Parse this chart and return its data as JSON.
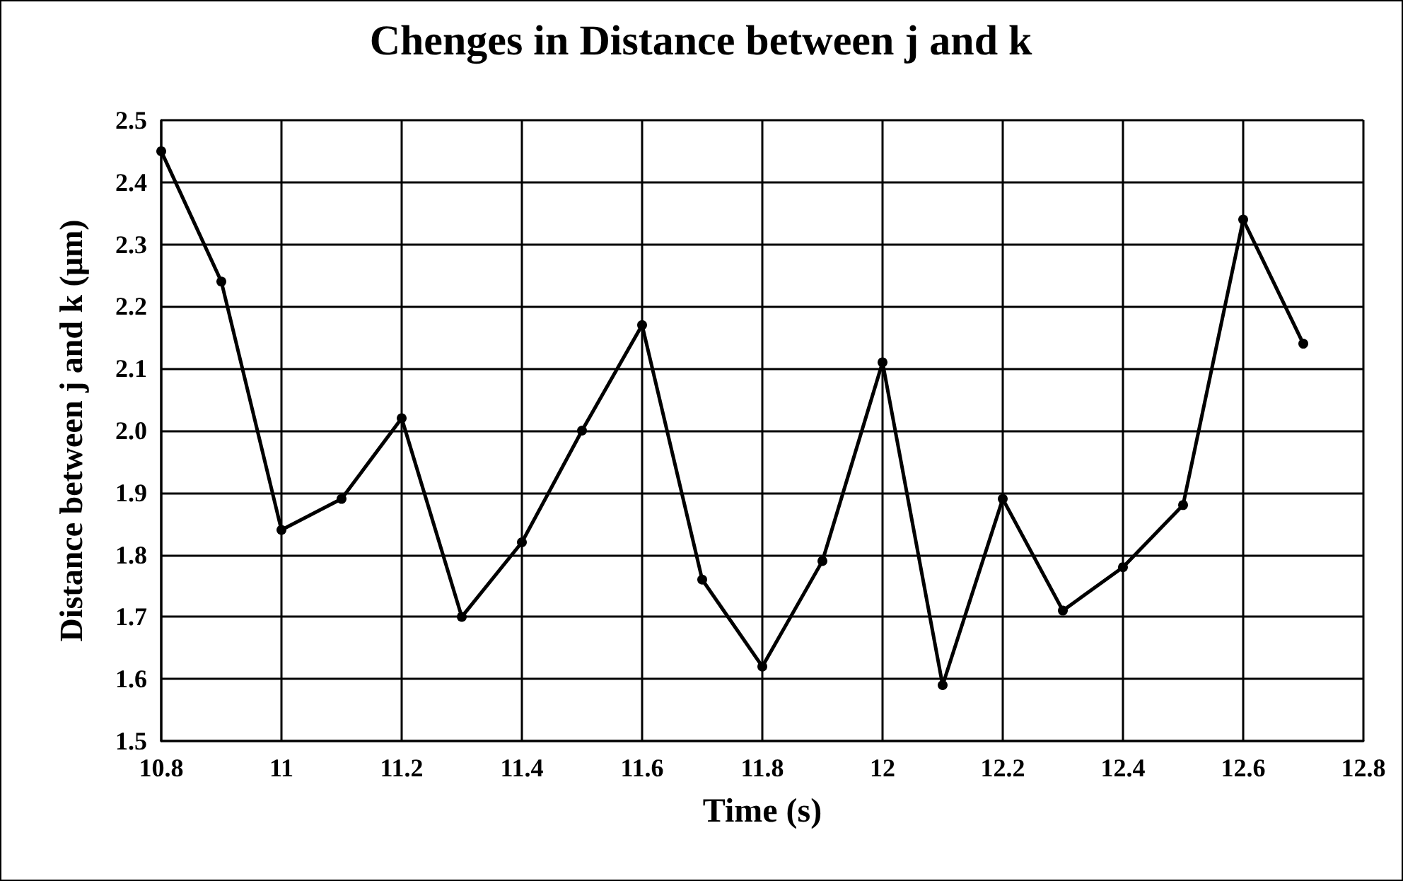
{
  "chart_data": {
    "type": "line",
    "title": "Chenges in Distance between j and k",
    "xlabel": "Time (s)",
    "ylabel": "Distance between j and k (μm)",
    "x": [
      10.8,
      10.9,
      11.0,
      11.1,
      11.2,
      11.3,
      11.4,
      11.5,
      11.6,
      11.7,
      11.8,
      11.9,
      12.0,
      12.1,
      12.2,
      12.3,
      12.4,
      12.5,
      12.6,
      12.7
    ],
    "series": [
      {
        "color": "#000000",
        "values": [
          2.45,
          2.24,
          1.84,
          1.89,
          2.02,
          1.7,
          1.82,
          2.0,
          2.17,
          1.76,
          1.62,
          1.79,
          2.11,
          1.59,
          1.89,
          1.71,
          1.78,
          1.88,
          2.34,
          2.14
        ]
      }
    ],
    "xlim": [
      10.8,
      12.8
    ],
    "xticks": [
      10.8,
      11,
      11.2,
      11.4,
      11.6,
      11.8,
      12,
      12.2,
      12.4,
      12.6,
      12.8
    ],
    "ylim": [
      1.5,
      2.5
    ],
    "yticks": [
      {
        "value": 1.5,
        "label": "1.5"
      },
      {
        "value": 1.6,
        "label": "1.6"
      },
      {
        "value": 1.7,
        "label": "1.7"
      },
      {
        "value": 1.8,
        "label": "1.8"
      },
      {
        "value": 1.9,
        "label": "1.9"
      },
      {
        "value": 2.0,
        "label": "2.0"
      },
      {
        "value": 2.1,
        "label": "2.1"
      },
      {
        "value": 2.2,
        "label": "2.2"
      },
      {
        "value": 2.3,
        "label": "2.3"
      },
      {
        "value": 2.4,
        "label": "2.4"
      },
      {
        "value": 2.5,
        "label": "2.5"
      }
    ],
    "grid": true,
    "marker": "circle",
    "line_style": "solid"
  }
}
